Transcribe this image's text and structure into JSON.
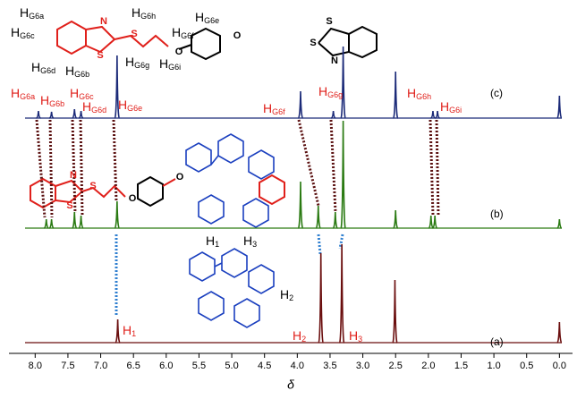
{
  "chart_data": {
    "type": "nmr",
    "x_label": "δ",
    "xlim": [
      8.4,
      -0.2
    ],
    "ylim": [
      0,
      130
    ],
    "xticks": [
      {
        "value": 8,
        "label": "8.0"
      },
      {
        "value": 7.5,
        "label": "7.5"
      },
      {
        "value": 7,
        "label": "7.0"
      },
      {
        "value": 6.5,
        "label": "6.5"
      },
      {
        "value": 6,
        "label": "6.0"
      },
      {
        "value": 5.5,
        "label": "5.5"
      },
      {
        "value": 5,
        "label": "5.0"
      },
      {
        "value": 4.5,
        "label": "4.5"
      },
      {
        "value": 4,
        "label": "4.0"
      },
      {
        "value": 3.5,
        "label": "3.5"
      },
      {
        "value": 3,
        "label": "3.0"
      },
      {
        "value": 2.5,
        "label": "2.5"
      },
      {
        "value": 2,
        "label": "2.0"
      },
      {
        "value": 1.5,
        "label": "1.5"
      },
      {
        "value": 1,
        "label": "1.0"
      },
      {
        "value": 0.5,
        "label": "0.5"
      },
      {
        "value": 0,
        "label": "0.0"
      }
    ],
    "series": [
      {
        "name": "(a)",
        "color": "#6b0f0f",
        "x": [
          6.74,
          3.64,
          3.32,
          2.51,
          0.0
        ],
        "values": [
          26,
          100,
          110,
          70,
          23
        ]
      },
      {
        "name": "(b)",
        "color": "#2a7a12",
        "x": [
          7.83,
          7.75,
          7.4,
          7.3,
          6.75,
          3.95,
          3.68,
          3.42,
          3.3,
          2.5,
          1.96,
          1.9,
          0.0
        ],
        "values": [
          10,
          10,
          18,
          14,
          30,
          52,
          25,
          18,
          120,
          20,
          14,
          14,
          10
        ]
      },
      {
        "name": "(c)",
        "color": "#1b2a78",
        "x": [
          7.95,
          7.75,
          7.4,
          7.3,
          6.75,
          3.95,
          3.45,
          3.3,
          2.5,
          1.93,
          1.86,
          0.0
        ],
        "values": [
          8,
          7,
          10,
          8,
          70,
          30,
          8,
          80,
          52,
          8,
          8,
          25
        ]
      }
    ],
    "annotations": [
      {
        "text": "H",
        "sub": "G6a",
        "color": "#e0201b"
      },
      {
        "text": "H",
        "sub": "G6b",
        "color": "#e0201b"
      },
      {
        "text": "H",
        "sub": "G6c",
        "color": "#e0201b"
      },
      {
        "text": "H",
        "sub": "G6d",
        "color": "#e0201b"
      },
      {
        "text": "H",
        "sub": "G6e",
        "color": "#e0201b"
      },
      {
        "text": "H",
        "sub": "G6f",
        "color": "#e0201b"
      },
      {
        "text": "H",
        "sub": "G6g",
        "color": "#e0201b"
      },
      {
        "text": "H",
        "sub": "G6h",
        "color": "#e0201b"
      },
      {
        "text": "H",
        "sub": "G6i",
        "color": "#e0201b"
      },
      {
        "text": "H",
        "sub": "1",
        "color": "#e0201b"
      },
      {
        "text": "H",
        "sub": "2",
        "color": "#e0201b"
      },
      {
        "text": "H",
        "sub": "3",
        "color": "#e0201b"
      },
      {
        "text": "H",
        "sub": "1",
        "color": "#000000"
      },
      {
        "text": "H",
        "sub": "3",
        "color": "#000000"
      },
      {
        "text": "H",
        "sub": "2",
        "color": "#000000"
      },
      {
        "text": "H",
        "sub": "G6a",
        "color": "#000000"
      },
      {
        "text": "H",
        "sub": "G6c",
        "color": "#000000"
      },
      {
        "text": "H",
        "sub": "G6d",
        "color": "#000000"
      },
      {
        "text": "H",
        "sub": "G6b",
        "color": "#000000"
      },
      {
        "text": "H",
        "sub": "G6h",
        "color": "#000000"
      },
      {
        "text": "H",
        "sub": "G6f",
        "color": "#000000"
      },
      {
        "text": "H",
        "sub": "G6g",
        "color": "#000000"
      },
      {
        "text": "H",
        "sub": "G6i",
        "color": "#000000"
      },
      {
        "text": "H",
        "sub": "G6e",
        "color": "#000000"
      }
    ],
    "atoms": [
      "S",
      "N",
      "S",
      "O",
      "O",
      "S",
      "S",
      "N",
      "S",
      "N",
      "S",
      "O",
      "O"
    ]
  }
}
